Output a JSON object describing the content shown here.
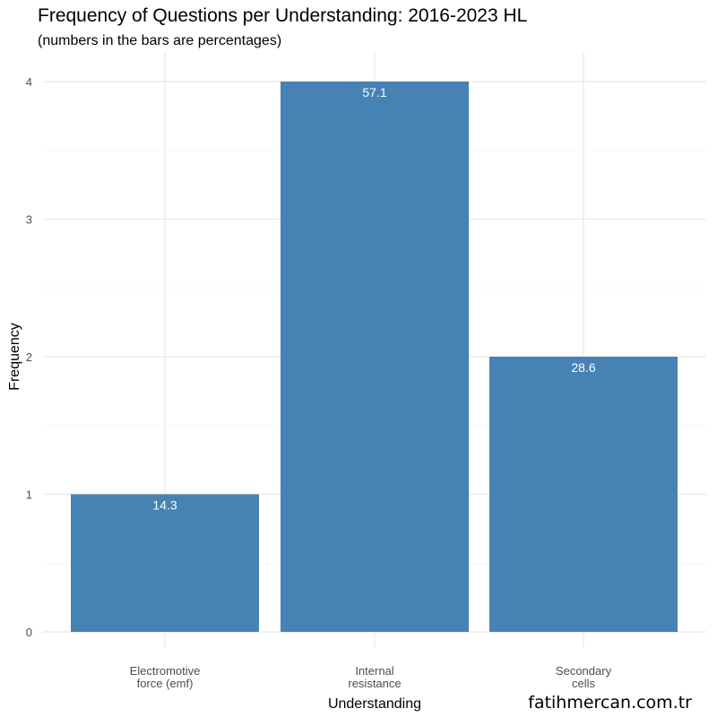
{
  "chart_data": {
    "type": "bar",
    "title": "Frequency of Questions per Understanding: 2016-2023 HL",
    "subtitle": "(numbers in the bars are percentages)",
    "xlabel": "Understanding",
    "ylabel": "Frequency",
    "categories": [
      [
        "Electromotive",
        "force (emf)"
      ],
      [
        "Internal",
        "resistance"
      ],
      [
        "Secondary",
        "cells"
      ]
    ],
    "values": [
      1,
      4,
      2
    ],
    "data_labels": [
      "14.3",
      "57.1",
      "28.6"
    ],
    "yticks": [
      "0",
      "1",
      "2",
      "3",
      "4"
    ],
    "ylim": [
      0,
      4
    ],
    "grid": true,
    "legend": "none",
    "bar_color": "#4682B4"
  },
  "watermark": "fatihmercan.com.tr"
}
